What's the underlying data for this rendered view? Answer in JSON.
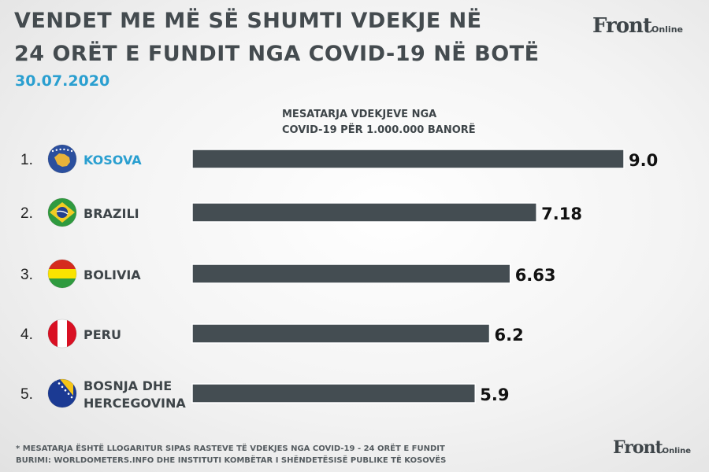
{
  "header": {
    "title_line1": "VENDET ME MË SË SHUMTI VDEKJE  NË",
    "title_line2": "24 ORËT E FUNDIT NGA COVID-19 NË BOTË",
    "date": "30.07.2020",
    "brand_main": "Front",
    "brand_suffix": "Online"
  },
  "chart_data": {
    "type": "bar",
    "orientation": "horizontal",
    "subtitle_line1": "MESATARJA VDEKJEVE  NGA",
    "subtitle_line2": "COVID-19 PËR 1.000.000 BANORË",
    "ranks": [
      "1.",
      "2.",
      "3.",
      "4.",
      "5."
    ],
    "categories": [
      [
        "KOSOVA"
      ],
      [
        "BRAZILI"
      ],
      [
        "BOLIVIA"
      ],
      [
        "PERU"
      ],
      [
        "BOSNJA DHE",
        "HERCEGOVINA"
      ]
    ],
    "values": [
      9.0,
      7.18,
      6.63,
      6.2,
      5.9
    ],
    "value_labels": [
      "9.0",
      "7.18",
      "6.63",
      "6.2",
      "5.9"
    ],
    "flags": [
      "kosovo-flag-icon",
      "brazil-flag-icon",
      "bolivia-flag-icon",
      "peru-flag-icon",
      "bosnia-flag-icon"
    ],
    "highlight_index": 0,
    "colors": {
      "bar": "#444d52",
      "label": "#3e4549",
      "highlight": "#2a9fd0",
      "value": "#111111"
    }
  },
  "footer": {
    "note_line1": "* MESATARJA ËSHTË LLOGARITUR SIPAS RASTEVE TË VDEKJES NGA COVID-19 - 24 ORËT E FUNDIT",
    "note_line2": "BURIMI: WORLDOMETERS.INFO DHE INSTITUTI KOMBËTAR I SHËNDETËSISË PUBLIKE TË KOSOVËS",
    "brand_main": "Front",
    "brand_suffix": "Online"
  }
}
